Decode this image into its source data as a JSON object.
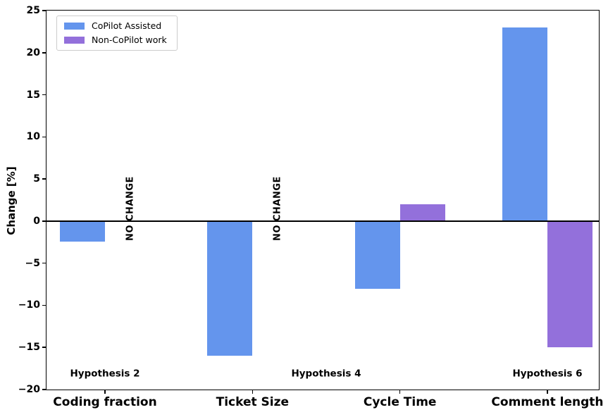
{
  "chart_data": {
    "type": "bar",
    "title": "",
    "xlabel": "",
    "ylabel": "Change [%]",
    "categories": [
      "Coding fraction",
      "Ticket Size",
      "Cycle Time",
      "Comment length"
    ],
    "series": [
      {
        "name": "CoPilot Assisted",
        "color": "#6495ED",
        "values": [
          -2.4,
          -16,
          -8,
          23
        ]
      },
      {
        "name": "Non-CoPilot work",
        "color": "#9370DB",
        "values": [
          null,
          null,
          2,
          -15
        ]
      }
    ],
    "no_change": {
      "label": "NO CHANGE",
      "categories": [
        0,
        1
      ]
    },
    "annotations": [
      {
        "text": "Hypothesis 2",
        "x_category": 0,
        "y": -18.2
      },
      {
        "text": "Hypothesis 4",
        "x_category": 1.5,
        "y": -18.2
      },
      {
        "text": "Hypothesis 6",
        "x_category": 3,
        "y": -18.2
      }
    ],
    "ylim": [
      -20,
      25
    ],
    "yticks": [
      25,
      20,
      15,
      10,
      5,
      0,
      -5,
      -10,
      -15,
      -20
    ],
    "ytick_labels": [
      "25",
      "20",
      "15",
      "10",
      "5",
      "0",
      "−5",
      "−10",
      "−15",
      "−20"
    ],
    "zero_line": true,
    "grid": false,
    "legend_position": "upper-left",
    "axis_color": "#000000",
    "background_color": "#ffffff"
  }
}
